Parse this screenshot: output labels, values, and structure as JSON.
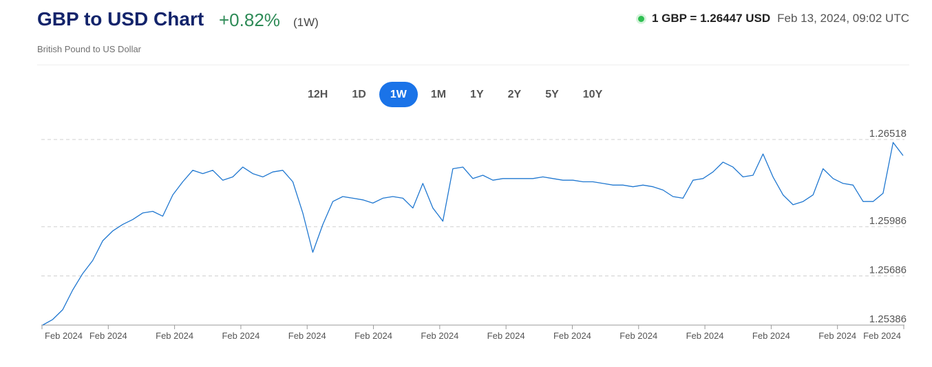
{
  "header": {
    "title": "GBP to USD Chart",
    "change": "+0.82%",
    "period": "(1W)",
    "subtitle": "British Pound to US Dollar",
    "rate": "1 GBP = 1.26447 USD",
    "timestamp": "Feb 13, 2024, 09:02 UTC",
    "change_color": "#2e8b57",
    "live_color": "#2fbf52"
  },
  "range_tabs": [
    {
      "label": "12H",
      "active": false
    },
    {
      "label": "1D",
      "active": false
    },
    {
      "label": "1W",
      "active": true
    },
    {
      "label": "1M",
      "active": false
    },
    {
      "label": "1Y",
      "active": false
    },
    {
      "label": "2Y",
      "active": false
    },
    {
      "label": "5Y",
      "active": false
    },
    {
      "label": "10Y",
      "active": false
    }
  ],
  "colors": {
    "accent": "#1a73e8",
    "line": "#1f77d0",
    "title": "#13246b"
  },
  "chart_data": {
    "type": "line",
    "y_ticks": [
      "1.26518",
      "1.25986",
      "1.25686",
      "1.25386"
    ],
    "y_tick_values": [
      1.26518,
      1.25986,
      1.25686,
      1.25386
    ],
    "ylim": [
      1.25386,
      1.26518
    ],
    "grid": "dashed horizontal at tick values",
    "x_tick_labels": [
      "Feb 2024",
      "Feb 2024",
      "Feb 2024",
      "Feb 2024",
      "Feb 2024",
      "Feb 2024",
      "Feb 2024",
      "Feb 2024",
      "Feb 2024",
      "Feb 2024",
      "Feb 2024",
      "Feb 2024",
      "Feb 2024",
      "Feb 2024"
    ],
    "series": [
      {
        "values": [
          1.25386,
          1.2542,
          1.2548,
          1.256,
          1.257,
          1.2578,
          1.259,
          1.2596,
          1.26,
          1.2603,
          1.2607,
          1.2608,
          1.2605,
          1.2618,
          1.2626,
          1.2633,
          1.2631,
          1.2633,
          1.2627,
          1.2629,
          1.2635,
          1.2631,
          1.2629,
          1.2632,
          1.2633,
          1.2626,
          1.2607,
          1.2583,
          1.26,
          1.2614,
          1.2617,
          1.2616,
          1.2615,
          1.2613,
          1.2616,
          1.2617,
          1.2616,
          1.261,
          1.2625,
          1.261,
          1.2602,
          1.2634,
          1.2635,
          1.2628,
          1.263,
          1.2627,
          1.2628,
          1.2628,
          1.2628,
          1.2628,
          1.2629,
          1.2628,
          1.2627,
          1.2627,
          1.2626,
          1.2626,
          1.2625,
          1.2624,
          1.2624,
          1.2623,
          1.2624,
          1.2623,
          1.2621,
          1.2617,
          1.2616,
          1.2627,
          1.2628,
          1.2632,
          1.2638,
          1.2635,
          1.2629,
          1.263,
          1.2643,
          1.2629,
          1.2618,
          1.2612,
          1.2614,
          1.2618,
          1.2634,
          1.2628,
          1.2625,
          1.2624,
          1.2614,
          1.2614,
          1.2619,
          1.265,
          1.2642
        ]
      }
    ]
  }
}
